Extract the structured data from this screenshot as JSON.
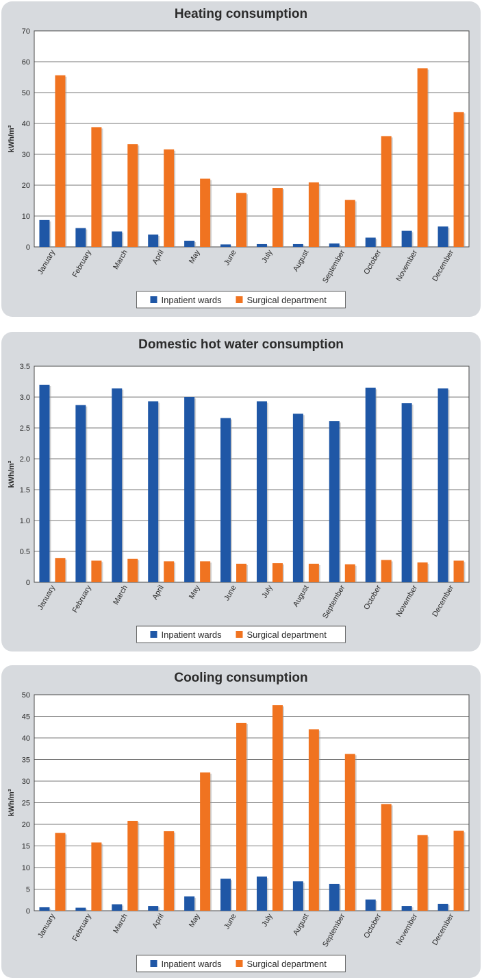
{
  "colors": {
    "inpatient": "#1f57a6",
    "surgical": "#f07320",
    "panel_bg": "#d7dade",
    "plot_bg": "#ffffff",
    "grid": "#4a4a4a",
    "text": "#2b2b2b"
  },
  "chart_data": [
    {
      "type": "bar",
      "title": "Heating consumption",
      "ylabel": "kWh/m²",
      "xlabel": "",
      "ylim": [
        0,
        70
      ],
      "yticks": [
        "0",
        "10",
        "20",
        "30",
        "40",
        "50",
        "60",
        "70"
      ],
      "ytick_values": [
        0,
        10,
        20,
        30,
        40,
        50,
        60,
        70
      ],
      "categories": [
        "January",
        "February",
        "March",
        "April",
        "May",
        "June",
        "July",
        "August",
        "September",
        "October",
        "November",
        "December"
      ],
      "series": [
        {
          "name": "Inpatient wards",
          "values": [
            8.7,
            6.1,
            5.0,
            4.0,
            2.0,
            0.8,
            0.9,
            0.9,
            1.1,
            3.0,
            5.2,
            6.6
          ]
        },
        {
          "name": "Surgical department",
          "values": [
            55.6,
            38.8,
            33.3,
            31.6,
            22.1,
            17.5,
            19.1,
            20.9,
            15.2,
            35.9,
            57.9,
            43.7
          ]
        }
      ],
      "legend": "bottom-center"
    },
    {
      "type": "bar",
      "title": "Domestic hot water consumption",
      "ylabel": "kWh/m²",
      "xlabel": "",
      "ylim": [
        0,
        3.5
      ],
      "yticks": [
        "0",
        "0.5",
        "1.0",
        "1.5",
        "2.0",
        "2.5",
        "3.0",
        "3.5"
      ],
      "ytick_values": [
        0,
        0.5,
        1.0,
        1.5,
        2.0,
        2.5,
        3.0,
        3.5
      ],
      "categories": [
        "January",
        "February",
        "March",
        "April",
        "May",
        "June",
        "July",
        "August",
        "September",
        "October",
        "November",
        "December"
      ],
      "series": [
        {
          "name": "Inpatient wards",
          "values": [
            3.2,
            2.87,
            3.14,
            2.93,
            3.0,
            2.66,
            2.93,
            2.73,
            2.61,
            3.15,
            2.9,
            3.14
          ]
        },
        {
          "name": "Surgical department",
          "values": [
            0.39,
            0.35,
            0.38,
            0.34,
            0.34,
            0.3,
            0.31,
            0.3,
            0.29,
            0.36,
            0.32,
            0.35
          ]
        }
      ],
      "legend": "bottom-center"
    },
    {
      "type": "bar",
      "title": "Cooling consumption",
      "ylabel": "kWh/m²",
      "xlabel": "",
      "ylim": [
        0,
        50
      ],
      "yticks": [
        "0",
        "5",
        "10",
        "15",
        "20",
        "25",
        "30",
        "35",
        "40",
        "45",
        "50"
      ],
      "ytick_values": [
        0,
        5,
        10,
        15,
        20,
        25,
        30,
        35,
        40,
        45,
        50
      ],
      "categories": [
        "January",
        "February",
        "March",
        "April",
        "May",
        "June",
        "July",
        "August",
        "September",
        "October",
        "November",
        "December"
      ],
      "series": [
        {
          "name": "Inpatient wards",
          "values": [
            0.8,
            0.7,
            1.5,
            1.1,
            3.3,
            7.4,
            7.9,
            6.8,
            6.2,
            2.6,
            1.1,
            1.6
          ]
        },
        {
          "name": "Surgical department",
          "values": [
            18.0,
            15.8,
            20.8,
            18.4,
            32.0,
            43.5,
            47.6,
            42.0,
            36.3,
            24.7,
            17.5,
            18.5
          ]
        }
      ],
      "legend": "bottom-center"
    }
  ]
}
